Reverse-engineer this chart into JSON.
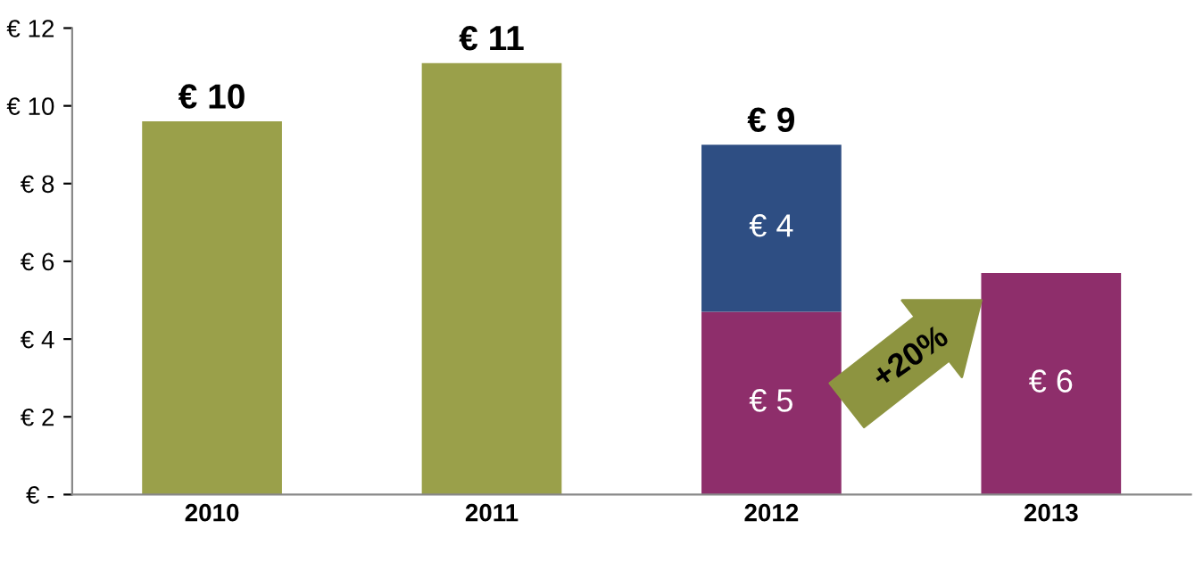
{
  "chart_data": {
    "type": "bar",
    "stacked": true,
    "categories": [
      "2010",
      "2011",
      "2012",
      "2013"
    ],
    "series": [
      {
        "color": "#9aa04a",
        "values": [
          9.6,
          11.1,
          null,
          null
        ]
      },
      {
        "color": "#8e2e6b",
        "values": [
          null,
          null,
          4.7,
          5.7
        ],
        "value_labels": [
          null,
          null,
          "€ 5",
          "€ 6"
        ]
      },
      {
        "color": "#2e4e83",
        "values": [
          null,
          null,
          4.3,
          null
        ],
        "value_labels": [
          null,
          null,
          "€ 4",
          null
        ]
      }
    ],
    "totals": [
      "€ 10",
      "€ 11",
      "€ 9",
      null
    ],
    "ylim": [
      0,
      12
    ],
    "yticks": [
      {
        "value": 0,
        "label": "€ -"
      },
      {
        "value": 2,
        "label": "€ 2"
      },
      {
        "value": 4,
        "label": "€ 4"
      },
      {
        "value": 6,
        "label": "€ 6"
      },
      {
        "value": 8,
        "label": "€ 8"
      },
      {
        "value": 10,
        "label": "€ 10"
      },
      {
        "value": 12,
        "label": "€ 12"
      }
    ],
    "grid": false,
    "annotations": [
      "+20%"
    ]
  }
}
